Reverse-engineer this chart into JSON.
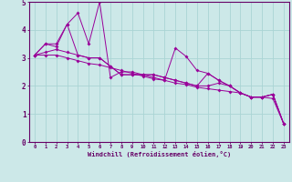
{
  "xlabel": "Windchill (Refroidissement éolien,°C)",
  "ylabel": "",
  "bg_color": "#cce8e8",
  "grid_color": "#aad4d4",
  "line_color": "#990099",
  "axis_color": "#660066",
  "spine_color": "#660066",
  "xlim": [
    -0.5,
    23.5
  ],
  "ylim": [
    0,
    5
  ],
  "xticks": [
    0,
    1,
    2,
    3,
    4,
    5,
    6,
    7,
    8,
    9,
    10,
    11,
    12,
    13,
    14,
    15,
    16,
    17,
    18,
    19,
    20,
    21,
    22,
    23
  ],
  "yticks": [
    0,
    1,
    2,
    3,
    4,
    5
  ],
  "series": [
    [
      3.1,
      3.5,
      3.5,
      4.2,
      4.6,
      3.5,
      5.0,
      2.3,
      2.5,
      2.5,
      2.4,
      2.3,
      2.2,
      3.35,
      3.05,
      2.55,
      2.45,
      2.2,
      2.0,
      1.75,
      1.6,
      1.6,
      1.7,
      0.65
    ],
    [
      3.1,
      3.5,
      3.4,
      4.2,
      3.1,
      3.0,
      3.0,
      2.7,
      2.4,
      2.4,
      2.4,
      2.4,
      2.3,
      2.2,
      2.1,
      2.0,
      2.45,
      2.2,
      2.0,
      1.75,
      1.6,
      1.6,
      1.7,
      0.65
    ],
    [
      3.1,
      3.2,
      3.3,
      3.2,
      3.1,
      3.0,
      3.0,
      2.7,
      2.4,
      2.4,
      2.4,
      2.4,
      2.3,
      2.2,
      2.1,
      2.0,
      2.0,
      2.1,
      2.0,
      1.75,
      1.6,
      1.6,
      1.7,
      0.65
    ],
    [
      3.1,
      3.1,
      3.1,
      3.0,
      2.9,
      2.8,
      2.75,
      2.65,
      2.55,
      2.45,
      2.35,
      2.25,
      2.2,
      2.1,
      2.05,
      1.95,
      1.9,
      1.85,
      1.8,
      1.75,
      1.6,
      1.6,
      1.55,
      0.65
    ]
  ]
}
